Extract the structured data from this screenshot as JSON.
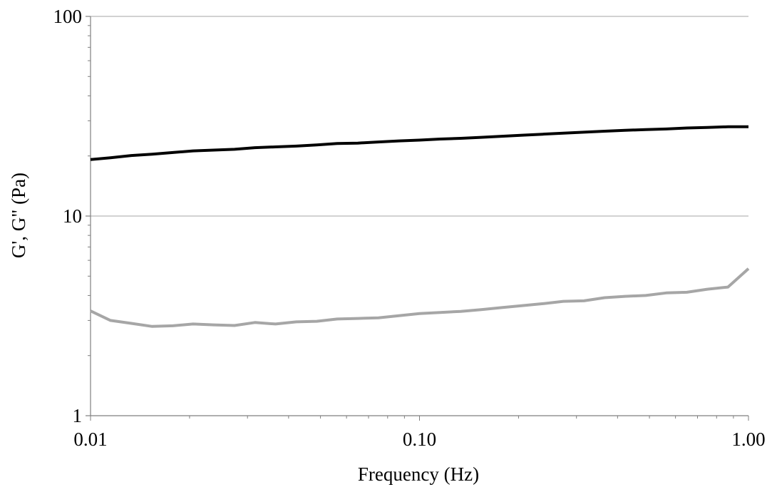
{
  "chart_data": {
    "type": "line",
    "title": "",
    "xlabel": "Frequency (Hz)",
    "ylabel": "G', G\" (Pa)",
    "x_scale": "log",
    "y_scale": "log",
    "xlim": [
      0.01,
      1.0
    ],
    "ylim": [
      1,
      100
    ],
    "x_ticks": [
      {
        "value": 0.01,
        "label": "0.01"
      },
      {
        "value": 0.1,
        "label": "0.10"
      },
      {
        "value": 1.0,
        "label": "1.00"
      }
    ],
    "y_ticks": [
      {
        "value": 1,
        "label": "1"
      },
      {
        "value": 10,
        "label": "10"
      },
      {
        "value": 100,
        "label": "100"
      }
    ],
    "grid": "horizontal major",
    "legend": "none",
    "series": [
      {
        "color": "#000000",
        "points": [
          [
            0.01,
            19.2
          ],
          [
            0.0115,
            19.6
          ],
          [
            0.0133,
            20.1
          ],
          [
            0.0154,
            20.4
          ],
          [
            0.0178,
            20.8
          ],
          [
            0.0205,
            21.2
          ],
          [
            0.0237,
            21.4
          ],
          [
            0.0274,
            21.6
          ],
          [
            0.0316,
            22.0
          ],
          [
            0.0365,
            22.2
          ],
          [
            0.0422,
            22.4
          ],
          [
            0.0487,
            22.7
          ],
          [
            0.0562,
            23.1
          ],
          [
            0.0649,
            23.2
          ],
          [
            0.075,
            23.5
          ],
          [
            0.0866,
            23.8
          ],
          [
            0.1,
            24.0
          ],
          [
            0.1155,
            24.3
          ],
          [
            0.1334,
            24.5
          ],
          [
            0.154,
            24.8
          ],
          [
            0.1778,
            25.1
          ],
          [
            0.2054,
            25.4
          ],
          [
            0.2371,
            25.7
          ],
          [
            0.2738,
            26.0
          ],
          [
            0.3162,
            26.3
          ],
          [
            0.3652,
            26.6
          ],
          [
            0.4217,
            26.9
          ],
          [
            0.487,
            27.1
          ],
          [
            0.5623,
            27.3
          ],
          [
            0.6494,
            27.6
          ],
          [
            0.7499,
            27.8
          ],
          [
            0.866,
            28.0
          ],
          [
            1.0,
            28.0
          ]
        ]
      },
      {
        "color": "#a6a6a6",
        "points": [
          [
            0.01,
            3.35
          ],
          [
            0.0115,
            3.0
          ],
          [
            0.0133,
            2.9
          ],
          [
            0.0154,
            2.8
          ],
          [
            0.0178,
            2.82
          ],
          [
            0.0205,
            2.88
          ],
          [
            0.0237,
            2.85
          ],
          [
            0.0274,
            2.83
          ],
          [
            0.0316,
            2.93
          ],
          [
            0.0365,
            2.88
          ],
          [
            0.0422,
            2.95
          ],
          [
            0.0487,
            2.97
          ],
          [
            0.0562,
            3.05
          ],
          [
            0.0649,
            3.07
          ],
          [
            0.075,
            3.09
          ],
          [
            0.0866,
            3.17
          ],
          [
            0.1,
            3.25
          ],
          [
            0.1155,
            3.29
          ],
          [
            0.1334,
            3.33
          ],
          [
            0.154,
            3.4
          ],
          [
            0.1778,
            3.48
          ],
          [
            0.2054,
            3.56
          ],
          [
            0.2371,
            3.64
          ],
          [
            0.2738,
            3.74
          ],
          [
            0.3162,
            3.76
          ],
          [
            0.3652,
            3.9
          ],
          [
            0.4217,
            3.96
          ],
          [
            0.487,
            4.0
          ],
          [
            0.5623,
            4.12
          ],
          [
            0.6494,
            4.15
          ],
          [
            0.7499,
            4.3
          ],
          [
            0.866,
            4.41
          ],
          [
            1.0,
            5.45
          ]
        ]
      }
    ]
  }
}
